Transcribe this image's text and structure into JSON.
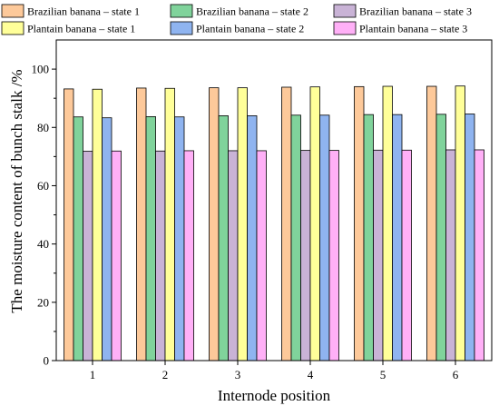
{
  "chart_data": {
    "type": "bar",
    "xlabel": "Internode position",
    "ylabel": "The moisture content of bunch stalk /%",
    "ylim": [
      0,
      110
    ],
    "yticks": [
      0,
      20,
      40,
      60,
      80,
      100
    ],
    "categories": [
      "1",
      "2",
      "3",
      "4",
      "5",
      "6"
    ],
    "grid": false,
    "legend_position": "top",
    "series": [
      {
        "name": "Brazilian banana – state 1",
        "color": "#fdc99a",
        "values": [
          93.2,
          93.5,
          93.6,
          93.8,
          94.0,
          94.1
        ]
      },
      {
        "name": "Brazilian banana – state 2",
        "color": "#80d39b",
        "values": [
          83.6,
          83.7,
          84.0,
          84.2,
          84.4,
          84.5
        ]
      },
      {
        "name": "Brazilian banana – state 3",
        "color": "#c9b3d6",
        "values": [
          71.8,
          71.9,
          72.0,
          72.1,
          72.2,
          72.3
        ]
      },
      {
        "name": "Plantain banana – state 1",
        "color": "#ffff99",
        "values": [
          93.1,
          93.4,
          93.6,
          93.9,
          94.1,
          94.2
        ]
      },
      {
        "name": "Plantain banana – state 2",
        "color": "#8fb4f0",
        "values": [
          83.3,
          83.6,
          84.0,
          84.2,
          84.4,
          84.6
        ]
      },
      {
        "name": "Plantain banana – state 3",
        "color": "#ffb0f7",
        "values": [
          71.9,
          72.0,
          72.0,
          72.1,
          72.2,
          72.3
        ]
      }
    ]
  }
}
